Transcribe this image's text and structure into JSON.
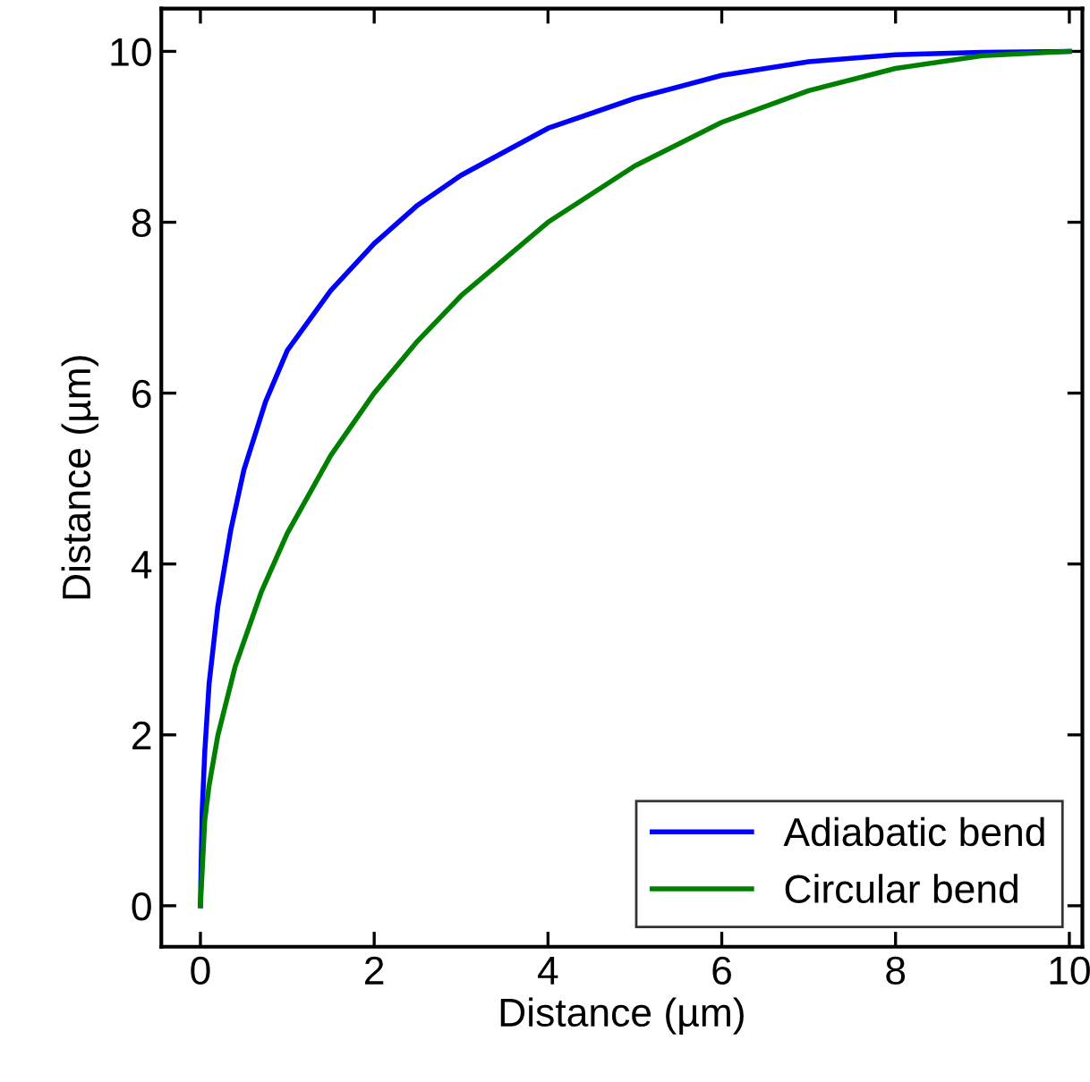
{
  "chart_data": {
    "type": "line",
    "xlabel": "Distance (µm)",
    "ylabel": "Distance (µm)",
    "xlim": [
      -0.45,
      10.15
    ],
    "ylim": [
      -0.48,
      10.5
    ],
    "xticks": [
      0,
      2,
      4,
      6,
      8,
      10
    ],
    "yticks": [
      0,
      2,
      4,
      6,
      8,
      10
    ],
    "grid": false,
    "legend": "bottom right",
    "marker": "none",
    "line_style": "solid",
    "series": [
      {
        "name": "Adiabatic bend",
        "color": "#0000ff",
        "x": [
          0,
          0.02,
          0.05,
          0.1,
          0.2,
          0.35,
          0.5,
          0.75,
          1,
          1.5,
          2,
          2.5,
          3,
          4,
          5,
          6,
          7,
          8,
          9,
          10
        ],
        "values": [
          0,
          1.1,
          1.8,
          2.6,
          3.5,
          4.4,
          5.1,
          5.9,
          6.5,
          7.2,
          7.75,
          8.2,
          8.55,
          9.1,
          9.45,
          9.72,
          9.88,
          9.96,
          9.99,
          10
        ]
      },
      {
        "name": "Circular bend",
        "color": "#008000",
        "x": [
          0,
          0.05,
          0.1,
          0.2,
          0.4,
          0.7,
          1,
          1.5,
          2,
          2.5,
          3,
          4,
          5,
          6,
          7,
          8,
          9,
          10
        ],
        "values": [
          0,
          1.0,
          1.41,
          1.99,
          2.8,
          3.67,
          4.36,
          5.27,
          6.0,
          6.61,
          7.14,
          8.0,
          8.66,
          9.17,
          9.54,
          9.8,
          9.95,
          10
        ]
      }
    ]
  }
}
